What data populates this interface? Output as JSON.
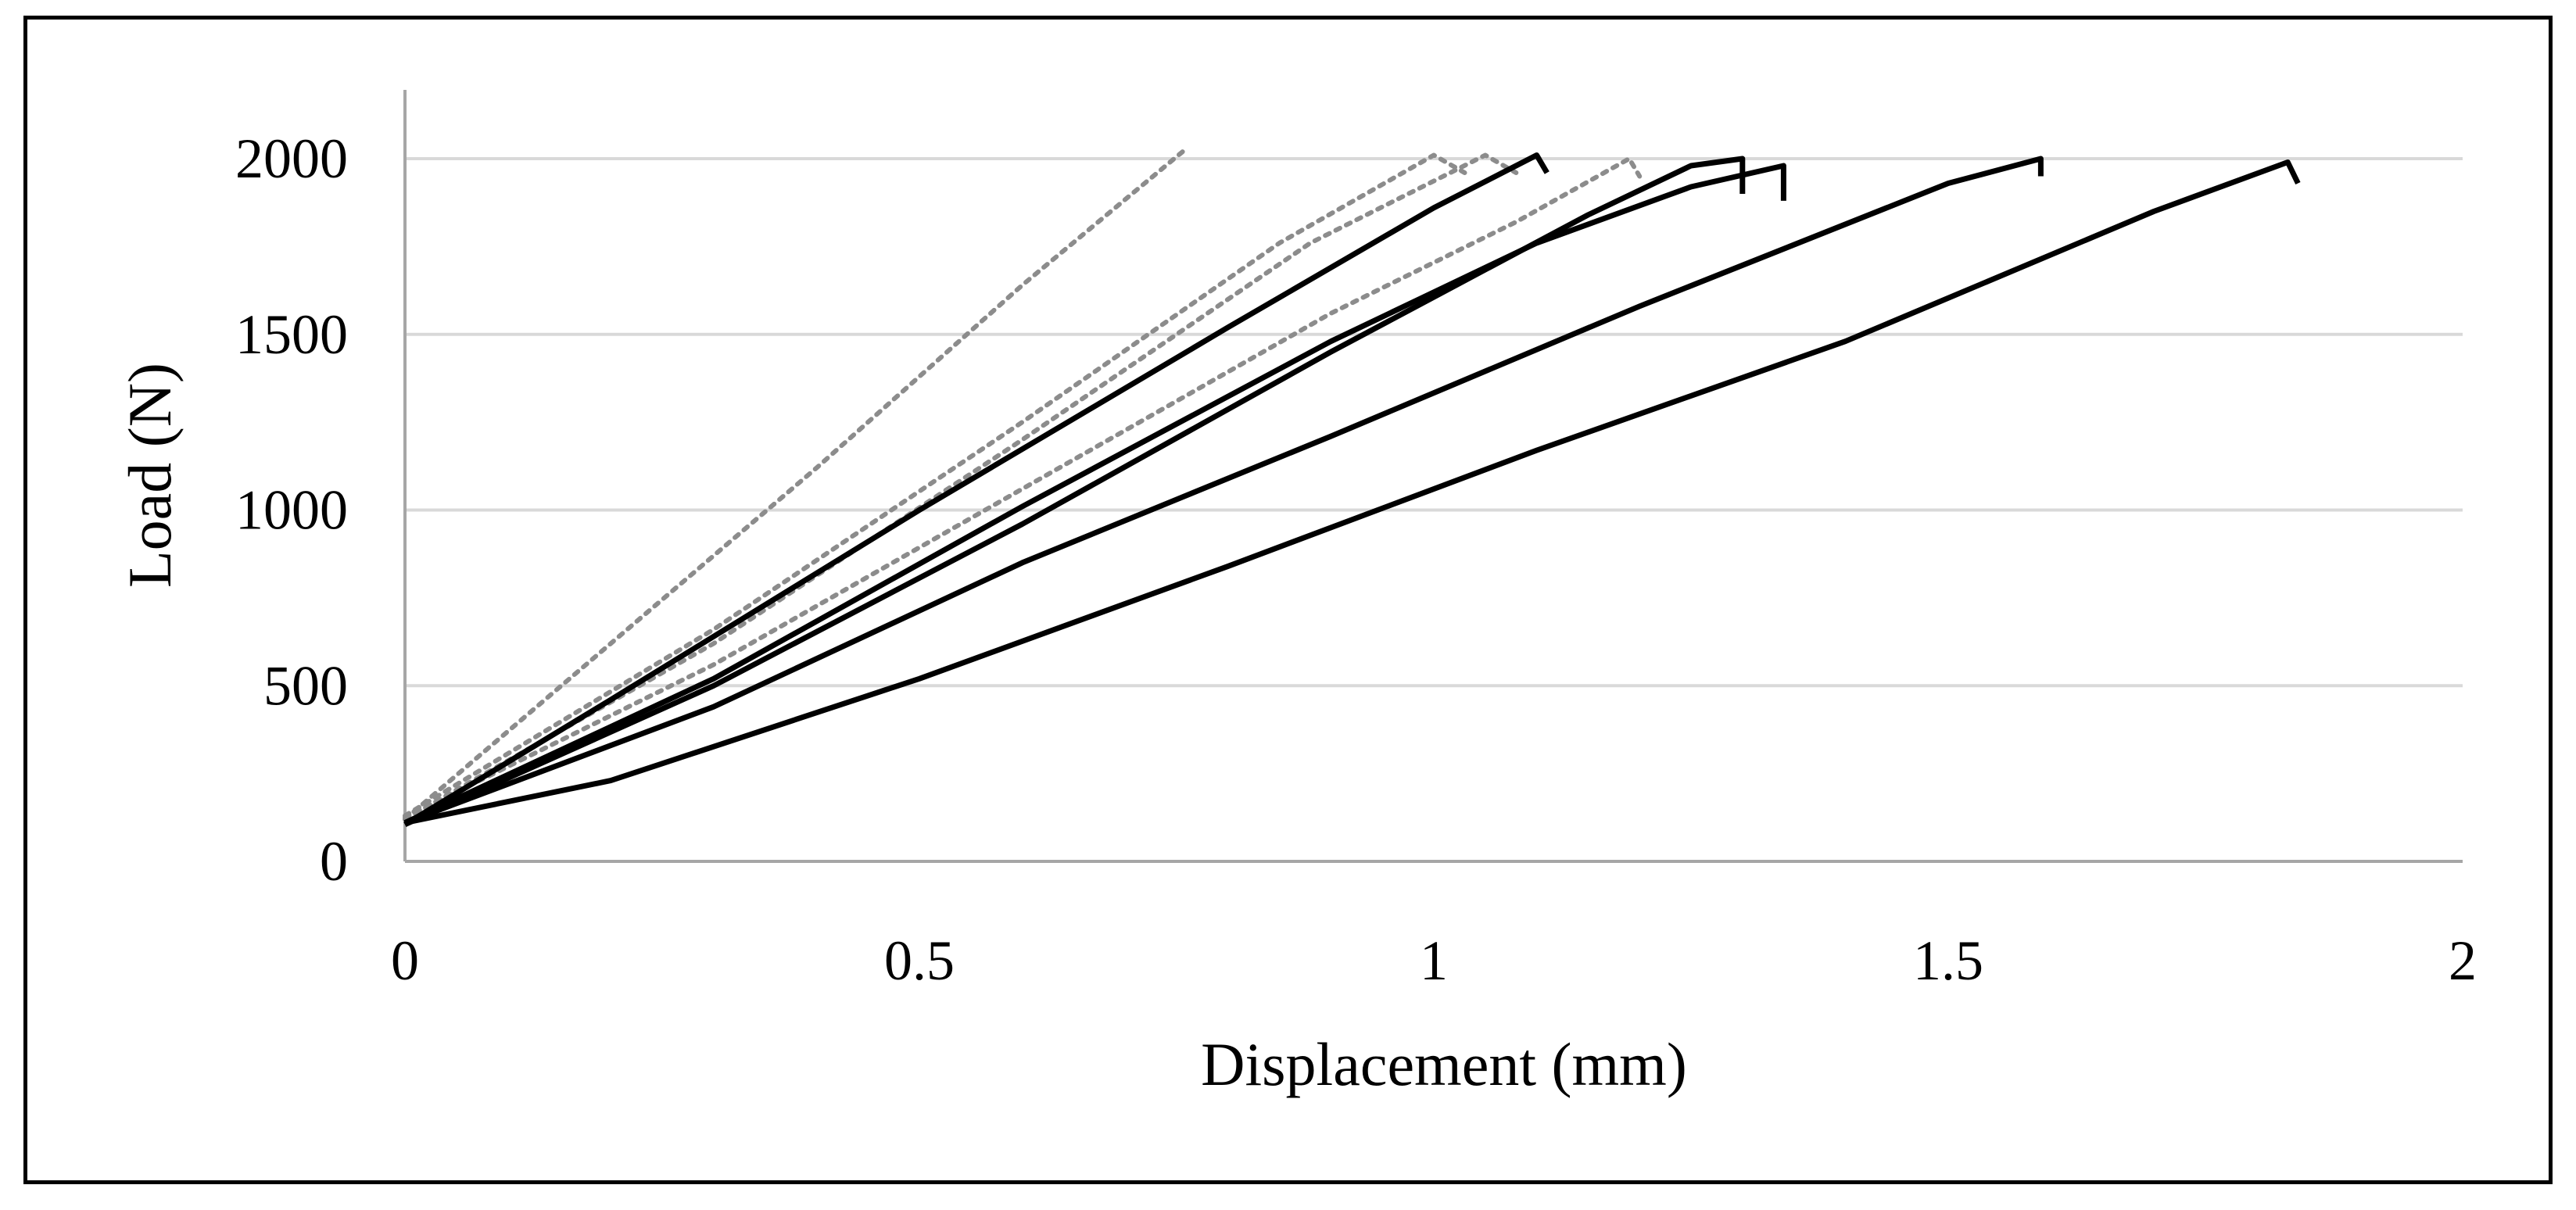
{
  "chart_data": {
    "type": "line",
    "title": "",
    "xlabel": "Displacement (mm)",
    "ylabel": "Load (N)",
    "xlim": [
      0,
      2
    ],
    "ylim": [
      0,
      2000
    ],
    "x_ticks": [
      {
        "value": 0,
        "label": "0"
      },
      {
        "value": 0.5,
        "label": "0.5"
      },
      {
        "value": 1,
        "label": "1"
      },
      {
        "value": 1.5,
        "label": "1.5"
      },
      {
        "value": 2,
        "label": "2"
      }
    ],
    "y_ticks": [
      {
        "value": 0,
        "label": "0"
      },
      {
        "value": 500,
        "label": "500"
      },
      {
        "value": 1000,
        "label": "1000"
      },
      {
        "value": 1500,
        "label": "1500"
      },
      {
        "value": 2000,
        "label": "2000"
      }
    ],
    "grid": "horizontal",
    "legend": "none",
    "colors": {
      "solid": "#000000",
      "dotted": "#8c8c8c",
      "grid": "#d9d9d9",
      "axis": "#a6a6a6"
    },
    "series": [
      {
        "style": "dotted",
        "points": [
          [
            0,
            120
          ],
          [
            0.2,
            620
          ],
          [
            0.4,
            1120
          ],
          [
            0.6,
            1640
          ],
          [
            0.76,
            2030
          ]
        ]
      },
      {
        "style": "dotted",
        "points": [
          [
            0,
            130
          ],
          [
            0.3,
            660
          ],
          [
            0.6,
            1250
          ],
          [
            0.85,
            1760
          ],
          [
            1.0,
            2010
          ],
          [
            1.03,
            1960
          ]
        ]
      },
      {
        "style": "dotted",
        "points": [
          [
            0,
            120
          ],
          [
            0.3,
            620
          ],
          [
            0.6,
            1200
          ],
          [
            0.88,
            1760
          ],
          [
            1.05,
            2010
          ],
          [
            1.08,
            1960
          ]
        ]
      },
      {
        "style": "dotted",
        "points": [
          [
            0,
            125
          ],
          [
            0.3,
            560
          ],
          [
            0.6,
            1060
          ],
          [
            0.9,
            1560
          ],
          [
            1.08,
            1820
          ],
          [
            1.19,
            2000
          ],
          [
            1.2,
            1950
          ]
        ]
      },
      {
        "style": "solid",
        "points": [
          [
            0,
            105
          ],
          [
            0.2,
            460
          ],
          [
            0.5,
            1000
          ],
          [
            0.8,
            1520
          ],
          [
            1.0,
            1860
          ],
          [
            1.1,
            2010
          ],
          [
            1.11,
            1960
          ]
        ]
      },
      {
        "style": "solid",
        "points": [
          [
            0,
            105
          ],
          [
            0.3,
            500
          ],
          [
            0.6,
            960
          ],
          [
            0.9,
            1450
          ],
          [
            1.15,
            1840
          ],
          [
            1.25,
            1980
          ],
          [
            1.3,
            2000
          ],
          [
            1.3,
            1900
          ]
        ]
      },
      {
        "style": "solid",
        "points": [
          [
            0,
            110
          ],
          [
            0.3,
            520
          ],
          [
            0.6,
            1010
          ],
          [
            0.9,
            1480
          ],
          [
            1.1,
            1760
          ],
          [
            1.25,
            1920
          ],
          [
            1.34,
            1980
          ],
          [
            1.34,
            1880
          ]
        ]
      },
      {
        "style": "solid",
        "points": [
          [
            0,
            110
          ],
          [
            0.3,
            440
          ],
          [
            0.6,
            850
          ],
          [
            0.9,
            1210
          ],
          [
            1.2,
            1580
          ],
          [
            1.5,
            1930
          ],
          [
            1.59,
            2000
          ],
          [
            1.59,
            1950
          ]
        ]
      },
      {
        "style": "solid",
        "points": [
          [
            0,
            110
          ],
          [
            0.2,
            230
          ],
          [
            0.5,
            520
          ],
          [
            0.8,
            840
          ],
          [
            1.1,
            1170
          ],
          [
            1.4,
            1480
          ],
          [
            1.7,
            1850
          ],
          [
            1.83,
            1990
          ],
          [
            1.84,
            1930
          ]
        ]
      }
    ]
  }
}
